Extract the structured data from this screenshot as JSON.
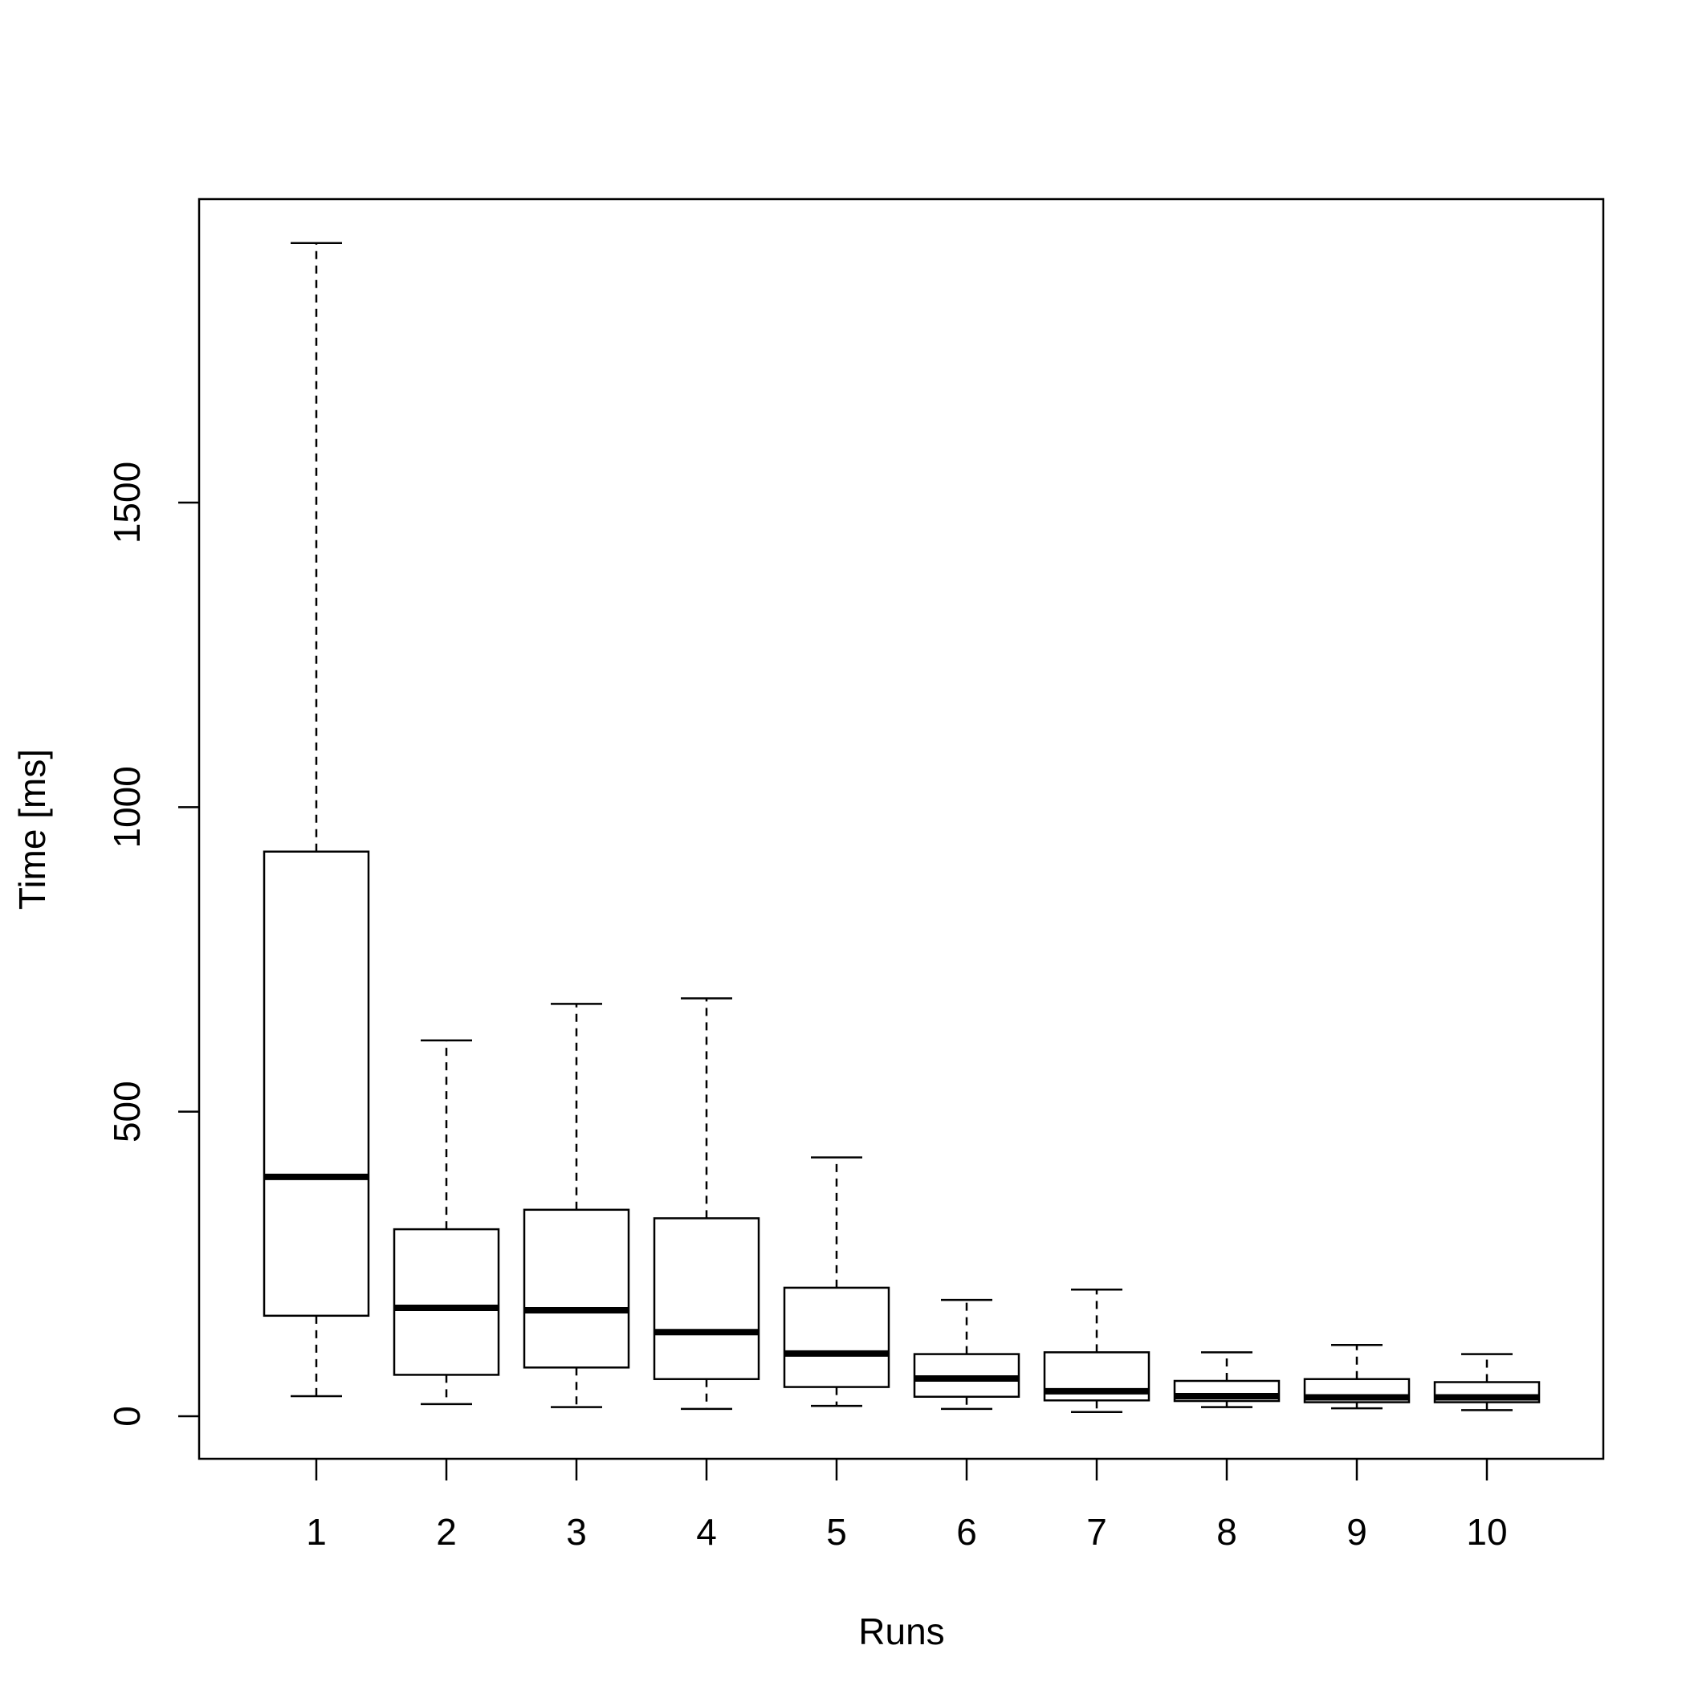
{
  "chart_data": {
    "type": "box",
    "title": "",
    "xlabel": "Runs",
    "ylabel": "Time [ms]",
    "ylim": [
      -70,
      2000
    ],
    "y_ticks": [
      0,
      500,
      1000,
      1500
    ],
    "grid": false,
    "legend": "none",
    "categories": [
      "1",
      "2",
      "3",
      "4",
      "5",
      "6",
      "7",
      "8",
      "9",
      "10"
    ],
    "boxes": [
      {
        "category": "1",
        "whisker_low": 33,
        "q1": 165,
        "median": 393,
        "q3": 927,
        "whisker_high": 1926
      },
      {
        "category": "2",
        "whisker_low": 20,
        "q1": 68,
        "median": 178,
        "q3": 307,
        "whisker_high": 617
      },
      {
        "category": "3",
        "whisker_low": 15,
        "q1": 80,
        "median": 174,
        "q3": 339,
        "whisker_high": 677
      },
      {
        "category": "4",
        "whisker_low": 12,
        "q1": 61,
        "median": 138,
        "q3": 325,
        "whisker_high": 686
      },
      {
        "category": "5",
        "whisker_low": 17,
        "q1": 48,
        "median": 103,
        "q3": 211,
        "whisker_high": 425
      },
      {
        "category": "6",
        "whisker_low": 12,
        "q1": 32,
        "median": 62,
        "q3": 102,
        "whisker_high": 191
      },
      {
        "category": "7",
        "whisker_low": 7,
        "q1": 26,
        "median": 41,
        "q3": 105,
        "whisker_high": 208
      },
      {
        "category": "8",
        "whisker_low": 15,
        "q1": 25,
        "median": 33,
        "q3": 58,
        "whisker_high": 105
      },
      {
        "category": "9",
        "whisker_low": 13,
        "q1": 23,
        "median": 31,
        "q3": 61,
        "whisker_high": 117
      },
      {
        "category": "10",
        "whisker_low": 10,
        "q1": 23,
        "median": 31,
        "q3": 56,
        "whisker_high": 102
      }
    ]
  }
}
